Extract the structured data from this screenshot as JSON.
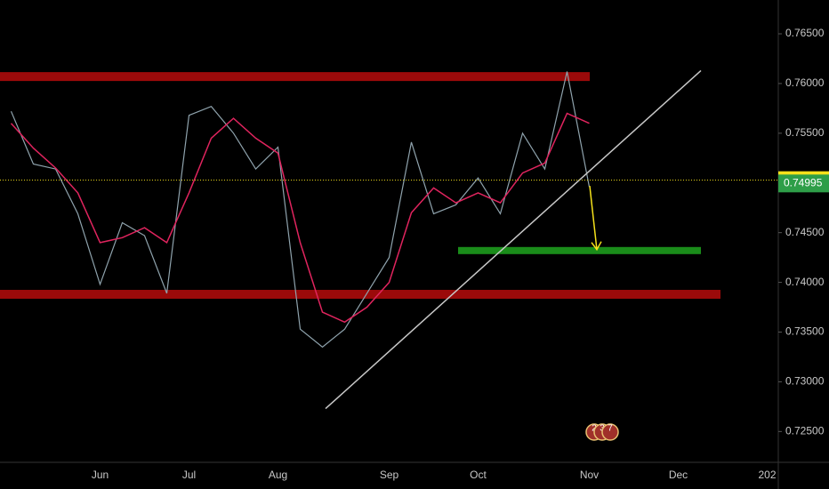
{
  "chart_data": {
    "type": "line",
    "categories": [
      null,
      null,
      null,
      null,
      "Jun",
      null,
      null,
      null,
      "Jul",
      null,
      null,
      null,
      "Aug",
      null,
      null,
      null,
      null,
      "Sep",
      null,
      null,
      null,
      "Oct",
      null,
      null,
      null,
      null,
      "Nov",
      null,
      null,
      null,
      "Dec",
      null,
      null,
      null,
      "202"
    ],
    "series": [
      {
        "color": "#8fa3ad",
        "values": [
          0.7572,
          0.7519,
          0.7514,
          0.7469,
          0.7398,
          0.746,
          0.7447,
          0.7389,
          0.7568,
          0.7577,
          0.755,
          0.7514,
          0.7536,
          0.7353,
          0.7335,
          0.7353,
          0.7389,
          0.7425,
          0.7541,
          0.7469,
          0.7478,
          0.7505,
          0.7469,
          0.755,
          0.7514,
          0.7612,
          0.7496,
          null,
          null,
          null,
          null,
          null,
          null,
          null,
          null
        ]
      },
      {
        "color": "#e0245e",
        "values": [
          0.756,
          0.7535,
          0.7515,
          0.749,
          0.744,
          0.7445,
          0.7455,
          0.744,
          0.749,
          0.7545,
          0.7565,
          0.7545,
          0.753,
          0.744,
          0.737,
          0.736,
          0.7375,
          0.74,
          0.747,
          0.7495,
          0.748,
          0.749,
          0.748,
          0.751,
          0.752,
          0.757,
          0.756,
          null,
          null,
          null,
          null,
          null,
          null,
          null,
          null
        ]
      }
    ],
    "ylim": [
      0.7219,
      0.7684
    ],
    "yticks": [
      {
        "value": 0.725,
        "label": "0.72500"
      },
      {
        "value": 0.73,
        "label": "0.73000"
      },
      {
        "value": 0.735,
        "label": "0.73500"
      },
      {
        "value": 0.74,
        "label": "0.74000"
      },
      {
        "value": 0.745,
        "label": "0.74500"
      },
      {
        "value": 0.75,
        "label": "0.75000"
      },
      {
        "value": 0.755,
        "label": "0.75500"
      },
      {
        "value": 0.76,
        "label": "0.76000"
      },
      {
        "value": 0.765,
        "label": "0.76500"
      }
    ],
    "hlines": [
      {
        "value": 0.7607,
        "color": "#9b0a0a"
      },
      {
        "value": 0.7388,
        "color": "#9b0a0a"
      },
      {
        "value": 0.7432,
        "color": "#1a8c1a"
      }
    ],
    "trendline": {
      "values": [
        0.7273,
        0.7613
      ],
      "color": "#c8c8c8"
    },
    "arrow": {
      "values": [
        0.7497,
        0.7433
      ],
      "color": "#f5e11b"
    },
    "price_tags": [
      {
        "value": 0.75028,
        "label": "0.75028",
        "color": "#f5e11b"
      },
      {
        "value": 0.74995,
        "label": "0.74995",
        "color": "#2e9e48"
      }
    ],
    "badges": [
      "2",
      "3",
      "7"
    ]
  }
}
